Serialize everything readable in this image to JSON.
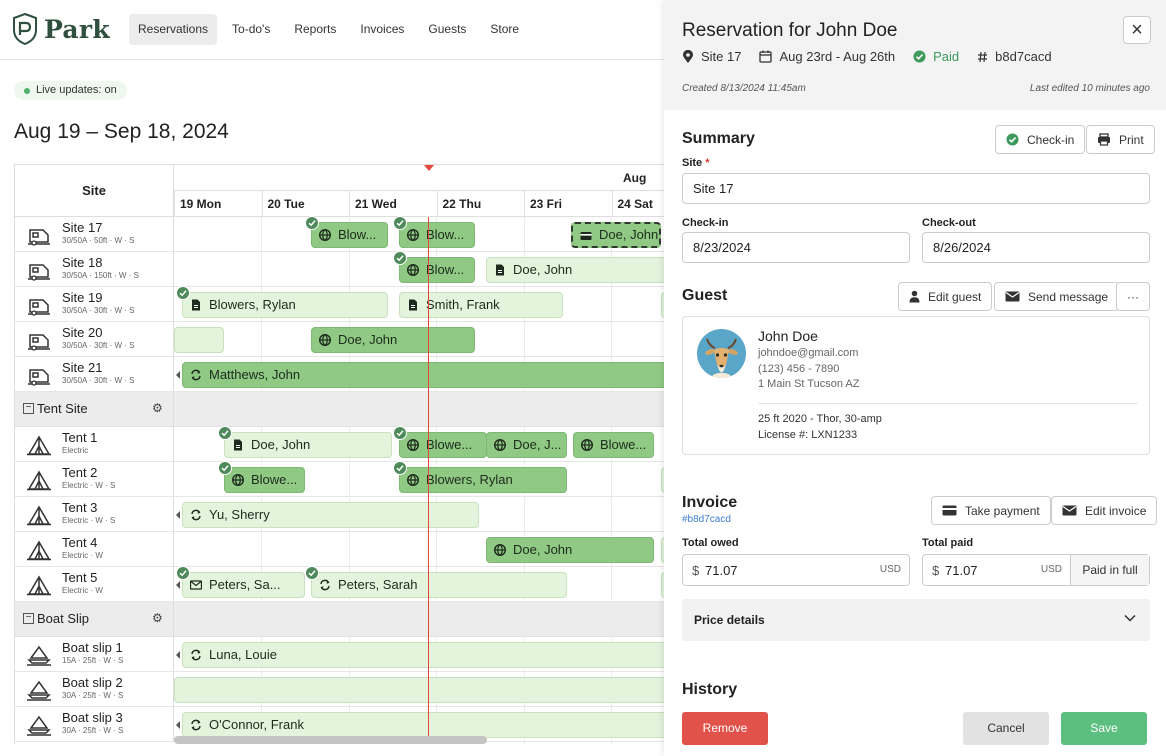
{
  "brand": {
    "name": "Park"
  },
  "nav": [
    {
      "label": "Reservations",
      "active": true
    },
    {
      "label": "To-do's"
    },
    {
      "label": "Reports"
    },
    {
      "label": "Invoices"
    },
    {
      "label": "Guests"
    },
    {
      "label": "Store"
    }
  ],
  "calendar": {
    "live_label": "Live updates: on",
    "range_title": "Aug 19 – Sep 18, 2024",
    "site_header": "Site",
    "month": "Aug",
    "days": [
      "19 Mon",
      "20 Tue",
      "21 Wed",
      "22 Thu",
      "23 Fri",
      "24 Sat"
    ],
    "rows": [
      {
        "type": "site",
        "name": "Site 17",
        "meta": "30/50A · 50ft · W · S"
      },
      {
        "type": "site",
        "name": "Site 18",
        "meta": "30/50A · 150ft · W · S"
      },
      {
        "type": "site",
        "name": "Site 19",
        "meta": "30/50A · 30ft · W · S"
      },
      {
        "type": "site",
        "name": "Site 20",
        "meta": "30/50A · 30ft · W · S"
      },
      {
        "type": "site",
        "name": "Site 21",
        "meta": "30/50A · 30ft · W · S"
      },
      {
        "type": "group",
        "name": "Tent Site"
      },
      {
        "type": "site",
        "name": "Tent 1",
        "meta": "Electric"
      },
      {
        "type": "site",
        "name": "Tent 2",
        "meta": "Electric · W · S"
      },
      {
        "type": "site",
        "name": "Tent 3",
        "meta": "Electric · W · S"
      },
      {
        "type": "site",
        "name": "Tent 4",
        "meta": "Electric · W"
      },
      {
        "type": "site",
        "name": "Tent 5",
        "meta": "Electric · W"
      },
      {
        "type": "group",
        "name": "Boat Slip"
      },
      {
        "type": "site",
        "name": "Boat slip 1",
        "meta": "15A · 25ft · W · S"
      },
      {
        "type": "site",
        "name": "Boat slip 2",
        "meta": "30A · 25ft · W · S"
      },
      {
        "type": "site",
        "name": "Boat slip 3",
        "meta": "30A · 25ft · W · S"
      }
    ],
    "reservations": [
      {
        "label": "Blow...",
        "icon": "globe-icon",
        "tone": "dark",
        "check": true
      },
      {
        "label": "Blow...",
        "icon": "globe-icon",
        "tone": "dark",
        "check": true
      },
      {
        "label": "Doe, John",
        "icon": "card-icon",
        "tone": "selected"
      },
      {
        "label": "Blow...",
        "icon": "globe-icon",
        "tone": "dark",
        "check": true
      },
      {
        "label": "Doe, John",
        "icon": "doc-icon",
        "tone": "light"
      },
      {
        "label": "Blowers, Rylan",
        "icon": "doc-icon",
        "tone": "light",
        "check": true
      },
      {
        "label": "Smith, Frank",
        "icon": "doc-icon",
        "tone": "light"
      },
      {
        "label": "",
        "icon": "",
        "tone": "light"
      },
      {
        "label": "",
        "icon": "",
        "tone": "light"
      },
      {
        "label": "Doe, John",
        "icon": "globe-icon",
        "tone": "dark"
      },
      {
        "label": "Matthews, John",
        "icon": "repeat-icon",
        "tone": "dark"
      },
      {
        "label": "Doe, John",
        "icon": "doc-icon",
        "tone": "light",
        "check": true
      },
      {
        "label": "Blowe...",
        "icon": "globe-icon",
        "tone": "dark",
        "check": true
      },
      {
        "label": "Doe, J...",
        "icon": "globe-icon",
        "tone": "dark"
      },
      {
        "label": "Blowe...",
        "icon": "globe-icon",
        "tone": "dark"
      },
      {
        "label": "Blowe...",
        "icon": "globe-icon",
        "tone": "dark",
        "check": true
      },
      {
        "label": "Blowers, Rylan",
        "icon": "globe-icon",
        "tone": "dark",
        "check": true
      },
      {
        "label": "",
        "icon": "",
        "tone": "light"
      },
      {
        "label": "Yu, Sherry",
        "icon": "repeat-icon",
        "tone": "light"
      },
      {
        "label": "Doe, John",
        "icon": "globe-icon",
        "tone": "dark"
      },
      {
        "label": "",
        "icon": "",
        "tone": "light"
      },
      {
        "label": "Peters, Sa...",
        "icon": "mail-icon",
        "tone": "light",
        "check": true
      },
      {
        "label": "Peters, Sarah",
        "icon": "repeat-icon",
        "tone": "light",
        "check": true
      },
      {
        "label": "",
        "icon": "",
        "tone": "light"
      },
      {
        "label": "Luna, Louie",
        "icon": "repeat-icon",
        "tone": "light"
      },
      {
        "label": "",
        "icon": "",
        "tone": "light"
      },
      {
        "label": "O'Connor, Frank",
        "icon": "repeat-icon",
        "tone": "light"
      }
    ]
  },
  "panel": {
    "title": "Reservation for John Doe",
    "site": "Site 17",
    "dates": "Aug 23rd - Aug 26th",
    "status": "Paid",
    "id": "b8d7cacd",
    "created": "Created 8/13/2024 11:45am",
    "edited": "Last edited 10 minutes ago",
    "summary": {
      "title": "Summary",
      "checkin_button": "Check-in",
      "print_button": "Print",
      "site_label": "Site",
      "site_value": "Site 17",
      "checkin_label": "Check-in",
      "checkin_value": "8/23/2024",
      "checkout_label": "Check-out",
      "checkout_value": "8/26/2024"
    },
    "guest": {
      "title": "Guest",
      "edit_button": "Edit guest",
      "message_button": "Send message",
      "more_button": "···",
      "name": "John Doe",
      "email": "johndoe@gmail.com",
      "phone": "(123) 456 - 7890",
      "address": "1 Main St Tucson AZ",
      "vehicle": "25 ft 2020 - Thor, 30-amp",
      "license": "License #: LXN1233"
    },
    "invoice": {
      "title": "Invoice",
      "link": "#b8d7cacd",
      "take_payment": "Take payment",
      "edit_invoice": "Edit invoice",
      "owed_label": "Total owed",
      "owed_value": "71.07",
      "paid_label": "Total paid",
      "paid_value": "71.07",
      "currency_symbol": "$",
      "currency_unit": "USD",
      "paid_full": "Paid in full",
      "price_details": "Price details"
    },
    "history": {
      "title": "History"
    },
    "actions": {
      "remove": "Remove",
      "cancel": "Cancel",
      "save": "Save"
    }
  },
  "colors": {
    "reservation_dark": "#8fc983",
    "reservation_light": "#e3f3dc",
    "today_line": "#e2473a",
    "paid_green": "#3e9a5c",
    "remove_red": "#e0524a",
    "save_green": "#5cbf7f"
  }
}
